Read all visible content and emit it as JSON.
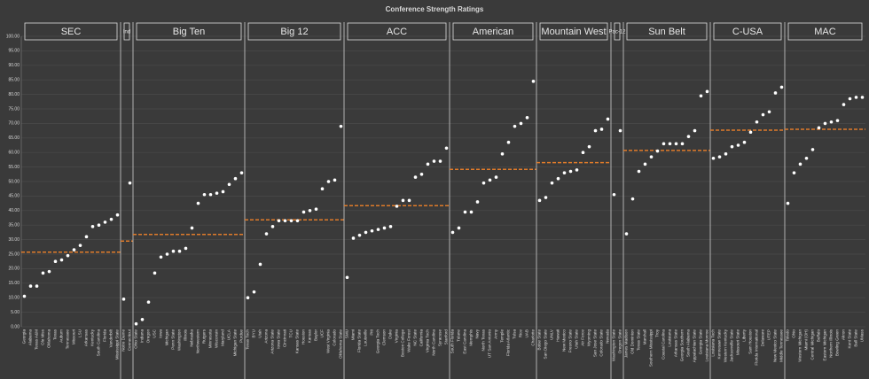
{
  "chart_data": {
    "type": "dot",
    "title": "Conference Strength Ratings",
    "ylim": [
      0,
      100
    ],
    "yticks": [
      {
        "value": 0,
        "label": "0.00"
      },
      {
        "value": 5,
        "label": "5.00"
      },
      {
        "value": 10,
        "label": "10.00"
      },
      {
        "value": 15,
        "label": "15.00"
      },
      {
        "value": 20,
        "label": "20.00"
      },
      {
        "value": 25,
        "label": "25.00"
      },
      {
        "value": 30,
        "label": "30.00"
      },
      {
        "value": 35,
        "label": "35.00"
      },
      {
        "value": 40,
        "label": "40.00"
      },
      {
        "value": 45,
        "label": "45.00"
      },
      {
        "value": 50,
        "label": "50.00"
      },
      {
        "value": 55,
        "label": "55.00"
      },
      {
        "value": 60,
        "label": "60.00"
      },
      {
        "value": 65,
        "label": "65.00"
      },
      {
        "value": 70,
        "label": "70.00"
      },
      {
        "value": 75,
        "label": "75.00"
      },
      {
        "value": 80,
        "label": "80.00"
      },
      {
        "value": 85,
        "label": "85.00"
      },
      {
        "value": 90,
        "label": "90.00"
      },
      {
        "value": 95,
        "label": "95.00"
      },
      {
        "value": 100,
        "label": "100.00"
      }
    ],
    "grid": true,
    "dot_color": "#ffffff",
    "average_color": "#e07b2a",
    "groups": [
      {
        "name": "SEC",
        "average": 25.7,
        "categories": [
          "Georgia",
          "Alabama",
          "Texas A&M",
          "Ole Miss",
          "Oklahoma",
          "Texas",
          "Auburn",
          "Tennessee",
          "Missouri",
          "LSU",
          "Arkansas",
          "Kentucky",
          "South Carolina",
          "Florida",
          "Vanderbilt",
          "Mississippi State"
        ],
        "values": [
          10.5,
          14,
          14,
          18.5,
          19,
          22.5,
          23,
          24.5,
          26.5,
          28,
          31,
          34.5,
          35,
          36,
          37,
          38.5
        ]
      },
      {
        "name": "Ind",
        "average": 29.5,
        "categories": [
          "Notre Dame",
          "Connecticut"
        ],
        "values": [
          9.5,
          49.5
        ]
      },
      {
        "name": "Big Ten",
        "average": 31.8,
        "categories": [
          "Ohio State",
          "Indiana",
          "Oregon",
          "USC",
          "Iowa",
          "Michigan",
          "Penn State",
          "Washington",
          "Illinois",
          "Nebraska",
          "Northwestern",
          "Rutgers",
          "Minnesota",
          "Wisconsin",
          "Maryland",
          "UCLA",
          "Michigan State",
          "Purdue"
        ],
        "values": [
          1,
          2.5,
          8.5,
          18.5,
          24,
          25,
          26,
          26,
          27,
          34,
          42.5,
          45.5,
          45.5,
          46,
          46.5,
          49,
          51,
          53
        ]
      },
      {
        "name": "Big 12",
        "average": 36.8,
        "categories": [
          "Texas Tech",
          "BYU",
          "Utah",
          "Arizona",
          "Arizona State",
          "Iowa State",
          "Cincinnati",
          "TCU",
          "Kansas State",
          "Houston",
          "Kansas",
          "Baylor",
          "UCF",
          "West Virginia",
          "Colorado",
          "Oklahoma State"
        ],
        "values": [
          10,
          12,
          21.5,
          32,
          34.5,
          36.5,
          36.5,
          36.5,
          36.5,
          39.5,
          40,
          40.5,
          47.5,
          50,
          50.5,
          69
        ]
      },
      {
        "name": "ACC",
        "average": 41.7,
        "categories": [
          "SMU",
          "Miami",
          "Florida State",
          "Louisville",
          "Pitt",
          "Georgia Tech",
          "Clemson",
          "Duke",
          "Virginia",
          "Boston College",
          "Wake Forest",
          "NC State",
          "California",
          "Virginia Tech",
          "North Carolina",
          "Syracuse",
          "Stanford"
        ],
        "values": [
          17,
          30.5,
          31.5,
          32.5,
          33,
          33.5,
          34,
          34.5,
          41.5,
          43.5,
          43.5,
          51.5,
          52.5,
          56,
          57,
          57,
          61.5
        ]
      },
      {
        "name": "American",
        "average": 54.2,
        "categories": [
          "South Florida",
          "Tulane",
          "East Carolina",
          "Memphis",
          "Navy",
          "North Texas",
          "UT San Antonio",
          "Army",
          "Temple",
          "Florida Atlantic",
          "Tulsa",
          "Rice",
          "UAB",
          "Charlotte"
        ],
        "values": [
          32.5,
          34,
          39.5,
          39.5,
          43,
          49.5,
          50.5,
          51.5,
          59.5,
          63.5,
          69,
          70,
          72,
          84.5
        ]
      },
      {
        "name": "Mountain West",
        "average": 56.5,
        "categories": [
          "Boise State",
          "San Diego State",
          "UNLV",
          "Hawaii",
          "New Mexico",
          "Fresno State",
          "Utah State",
          "Air Force",
          "Wyoming",
          "San Jose State",
          "Colorado State",
          "Nevada"
        ],
        "values": [
          43.5,
          44.5,
          49.5,
          51,
          53,
          53.5,
          54,
          60,
          62,
          67.5,
          68,
          71.5
        ]
      },
      {
        "name": "Pac-12",
        "categories": [
          "Washington State",
          "Oregon State"
        ],
        "values": [
          45.5,
          67.5
        ]
      },
      {
        "name": "Sun Belt",
        "average": 60.7,
        "categories": [
          "James Madison",
          "Old Dominion",
          "Texas State",
          "Marshall",
          "Southern Mississippi",
          "Troy",
          "Coastal Carolina",
          "Louisiana",
          "Arkansas State",
          "Georgia Southern",
          "South Alabama",
          "Appalachian State",
          "Georgia State",
          "Louisiana Monroe"
        ],
        "values": [
          32,
          44,
          53.5,
          56,
          58.5,
          60.5,
          63,
          63,
          63,
          63,
          65.5,
          67.5,
          79.5,
          81
        ]
      },
      {
        "name": "C-USA",
        "average": 67.7,
        "categories": [
          "Louisiana Tech",
          "Kennesaw State",
          "Western Kentucky",
          "Jacksonville State",
          "Missouri State",
          "Liberty",
          "Sam Houston",
          "Florida International",
          "Delaware",
          "UTEP",
          "New Mexico State",
          "Middle Tennessee"
        ],
        "values": [
          58,
          58.5,
          59.5,
          62,
          62.5,
          63.5,
          67,
          70.5,
          73,
          74,
          80.5,
          82.5
        ]
      },
      {
        "name": "MAC",
        "average": 68,
        "categories": [
          "Toledo",
          "Ohio",
          "Western Michigan",
          "Miami (OH)",
          "Central Michigan",
          "Buffalo",
          "Eastern Michigan",
          "Northern Illinois",
          "Bowling Green",
          "Akron",
          "Kent State",
          "Ball State",
          "UMass"
        ],
        "values": [
          42.5,
          53,
          56,
          58,
          61,
          68.5,
          70,
          70.5,
          71,
          76.5,
          78.5,
          79,
          79
        ]
      }
    ]
  }
}
